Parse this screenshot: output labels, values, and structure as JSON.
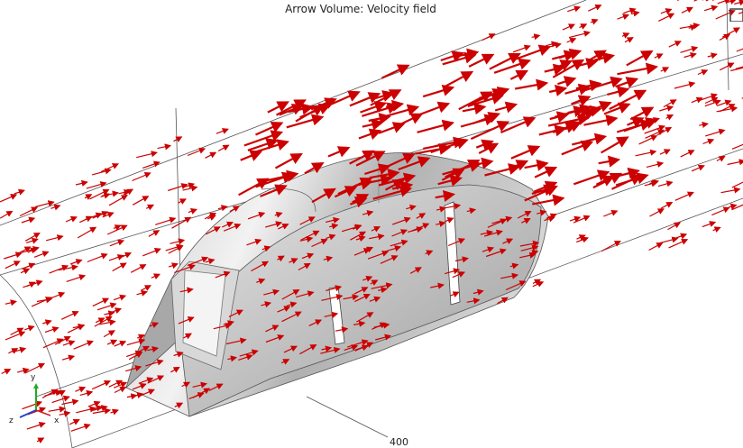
{
  "plot": {
    "title": "Arrow Volume: Velocity field",
    "plot_type": "arrow-volume",
    "arrow_color": "#cc0000",
    "surface_color": "#b8b8b8",
    "background": "#ffffff"
  },
  "axis": {
    "tick_label": "400",
    "triad": {
      "y_label": "y",
      "z_label": "z",
      "x_label": "x",
      "y_color": "#22aa22",
      "z_color": "#2244cc",
      "x_color": "#cc2222"
    }
  }
}
